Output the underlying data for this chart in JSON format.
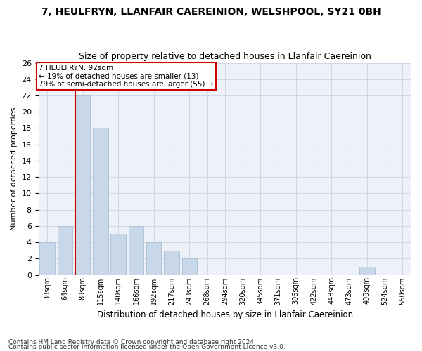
{
  "title1": "7, HEULFRYN, LLANFAIR CAEREINION, WELSHPOOL, SY21 0BH",
  "title2": "Size of property relative to detached houses in Llanfair Caereinion",
  "xlabel": "Distribution of detached houses by size in Llanfair Caereinion",
  "ylabel": "Number of detached properties",
  "footnote1": "Contains HM Land Registry data © Crown copyright and database right 2024.",
  "footnote2": "Contains public sector information licensed under the Open Government Licence v3.0.",
  "bar_labels": [
    "38sqm",
    "64sqm",
    "89sqm",
    "115sqm",
    "140sqm",
    "166sqm",
    "192sqm",
    "217sqm",
    "243sqm",
    "268sqm",
    "294sqm",
    "320sqm",
    "345sqm",
    "371sqm",
    "396sqm",
    "422sqm",
    "448sqm",
    "473sqm",
    "499sqm",
    "524sqm",
    "550sqm"
  ],
  "bar_values": [
    4,
    6,
    22,
    18,
    5,
    6,
    4,
    3,
    2,
    0,
    0,
    0,
    0,
    0,
    0,
    0,
    0,
    0,
    1,
    0,
    0
  ],
  "bar_color": "#c8d8e8",
  "bar_edge_color": "#a0b8d0",
  "grid_color": "#d0d8e8",
  "bg_color": "#eef2f8",
  "annotation_line1": "7 HEULFRYN: 92sqm",
  "annotation_line2": "← 19% of detached houses are smaller (13)",
  "annotation_line3": "79% of semi-detached houses are larger (55) →",
  "annotation_box_color": "#ffffff",
  "annotation_box_edge": "#cc0000",
  "vline_color": "#cc0000",
  "vline_bar_index": 2,
  "ylim": [
    0,
    26
  ],
  "yticks": [
    0,
    2,
    4,
    6,
    8,
    10,
    12,
    14,
    16,
    18,
    20,
    22,
    24,
    26
  ]
}
